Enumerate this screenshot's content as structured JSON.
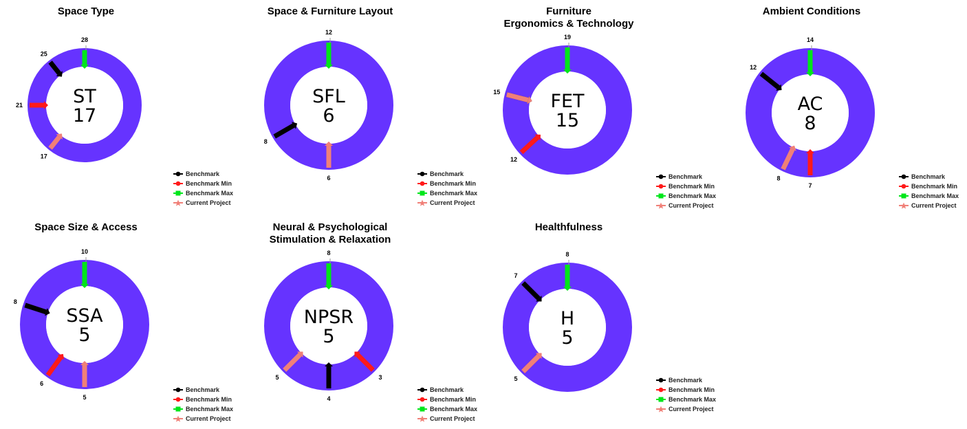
{
  "colors": {
    "ring": "#6633ff",
    "benchmark": "#000000",
    "benchmark_min": "#ff1a1a",
    "benchmark_max": "#00e61a",
    "current_project": "#f08078"
  },
  "chart_data": [
    {
      "type": "radial-gauge",
      "title": "Space Type",
      "center_code": "ST",
      "center_value": "17",
      "max": 28,
      "markers": {
        "benchmark": 25,
        "benchmark_min": 21,
        "benchmark_max": 28,
        "current_project": 17
      },
      "marker_labels": [
        "28",
        "25",
        "21",
        "17"
      ],
      "legend": [
        "Benchmark",
        "Benchmark Min",
        "Benchmark Max",
        "Current Project"
      ]
    },
    {
      "type": "radial-gauge",
      "title": "Space & Furniture Layout",
      "center_code": "SFL",
      "center_value": "6",
      "max": 12,
      "markers": {
        "benchmark": 8,
        "benchmark_min": 6,
        "benchmark_max": 12,
        "current_project": 6
      },
      "marker_labels": [
        "12",
        "8",
        "6"
      ],
      "legend": [
        "Benchmark",
        "Benchmark Min",
        "Benchmark Max",
        "Current Project"
      ]
    },
    {
      "type": "radial-gauge",
      "title": "Furniture\nErgonomics & Technology",
      "center_code": "FET",
      "center_value": "15",
      "max": 19,
      "markers": {
        "benchmark": 15,
        "benchmark_min": 12,
        "benchmark_max": 19,
        "current_project": 15
      },
      "marker_labels": [
        "19",
        "15",
        "12"
      ],
      "legend": [
        "Benchmark",
        "Benchmark Min",
        "Benchmark Max",
        "Current Project"
      ]
    },
    {
      "type": "radial-gauge",
      "title": "Ambient Conditions",
      "center_code": "AC",
      "center_value": "8",
      "max": 14,
      "markers": {
        "benchmark": 12,
        "benchmark_min": 7,
        "benchmark_max": 14,
        "current_project": 8
      },
      "marker_labels": [
        "14",
        "12",
        "8",
        "7"
      ],
      "legend": [
        "Benchmark",
        "Benchmark Min",
        "Benchmark Max",
        "Current Project"
      ]
    },
    {
      "type": "radial-gauge",
      "title": "Space Size & Access",
      "center_code": "SSA",
      "center_value": "5",
      "max": 10,
      "markers": {
        "benchmark": 8,
        "benchmark_min": 6,
        "benchmark_max": 10,
        "current_project": 5
      },
      "marker_labels": [
        "10",
        "8",
        "6",
        "5"
      ],
      "legend": [
        "Benchmark",
        "Benchmark Min",
        "Benchmark Max",
        "Current Project"
      ]
    },
    {
      "type": "radial-gauge",
      "title": "Neural & Psychological\nStimulation & Relaxation",
      "center_code": "NPSR",
      "center_value": "5",
      "max": 8,
      "markers": {
        "benchmark": 4,
        "benchmark_min": 3,
        "benchmark_max": 8,
        "current_project": 5
      },
      "marker_labels": [
        "8",
        "3",
        "4",
        "5"
      ],
      "legend": [
        "Benchmark",
        "Benchmark Min",
        "Benchmark Max",
        "Current Project"
      ]
    },
    {
      "type": "radial-gauge",
      "title": "Healthfulness",
      "center_code": "H",
      "center_value": "5",
      "max": 8,
      "markers": {
        "benchmark": 7,
        "benchmark_min": 5,
        "benchmark_max": 8,
        "current_project": 5
      },
      "marker_labels": [
        "8",
        "7",
        "5"
      ],
      "legend": [
        "Benchmark",
        "Benchmark Min",
        "Benchmark Max",
        "Current Project"
      ]
    }
  ]
}
